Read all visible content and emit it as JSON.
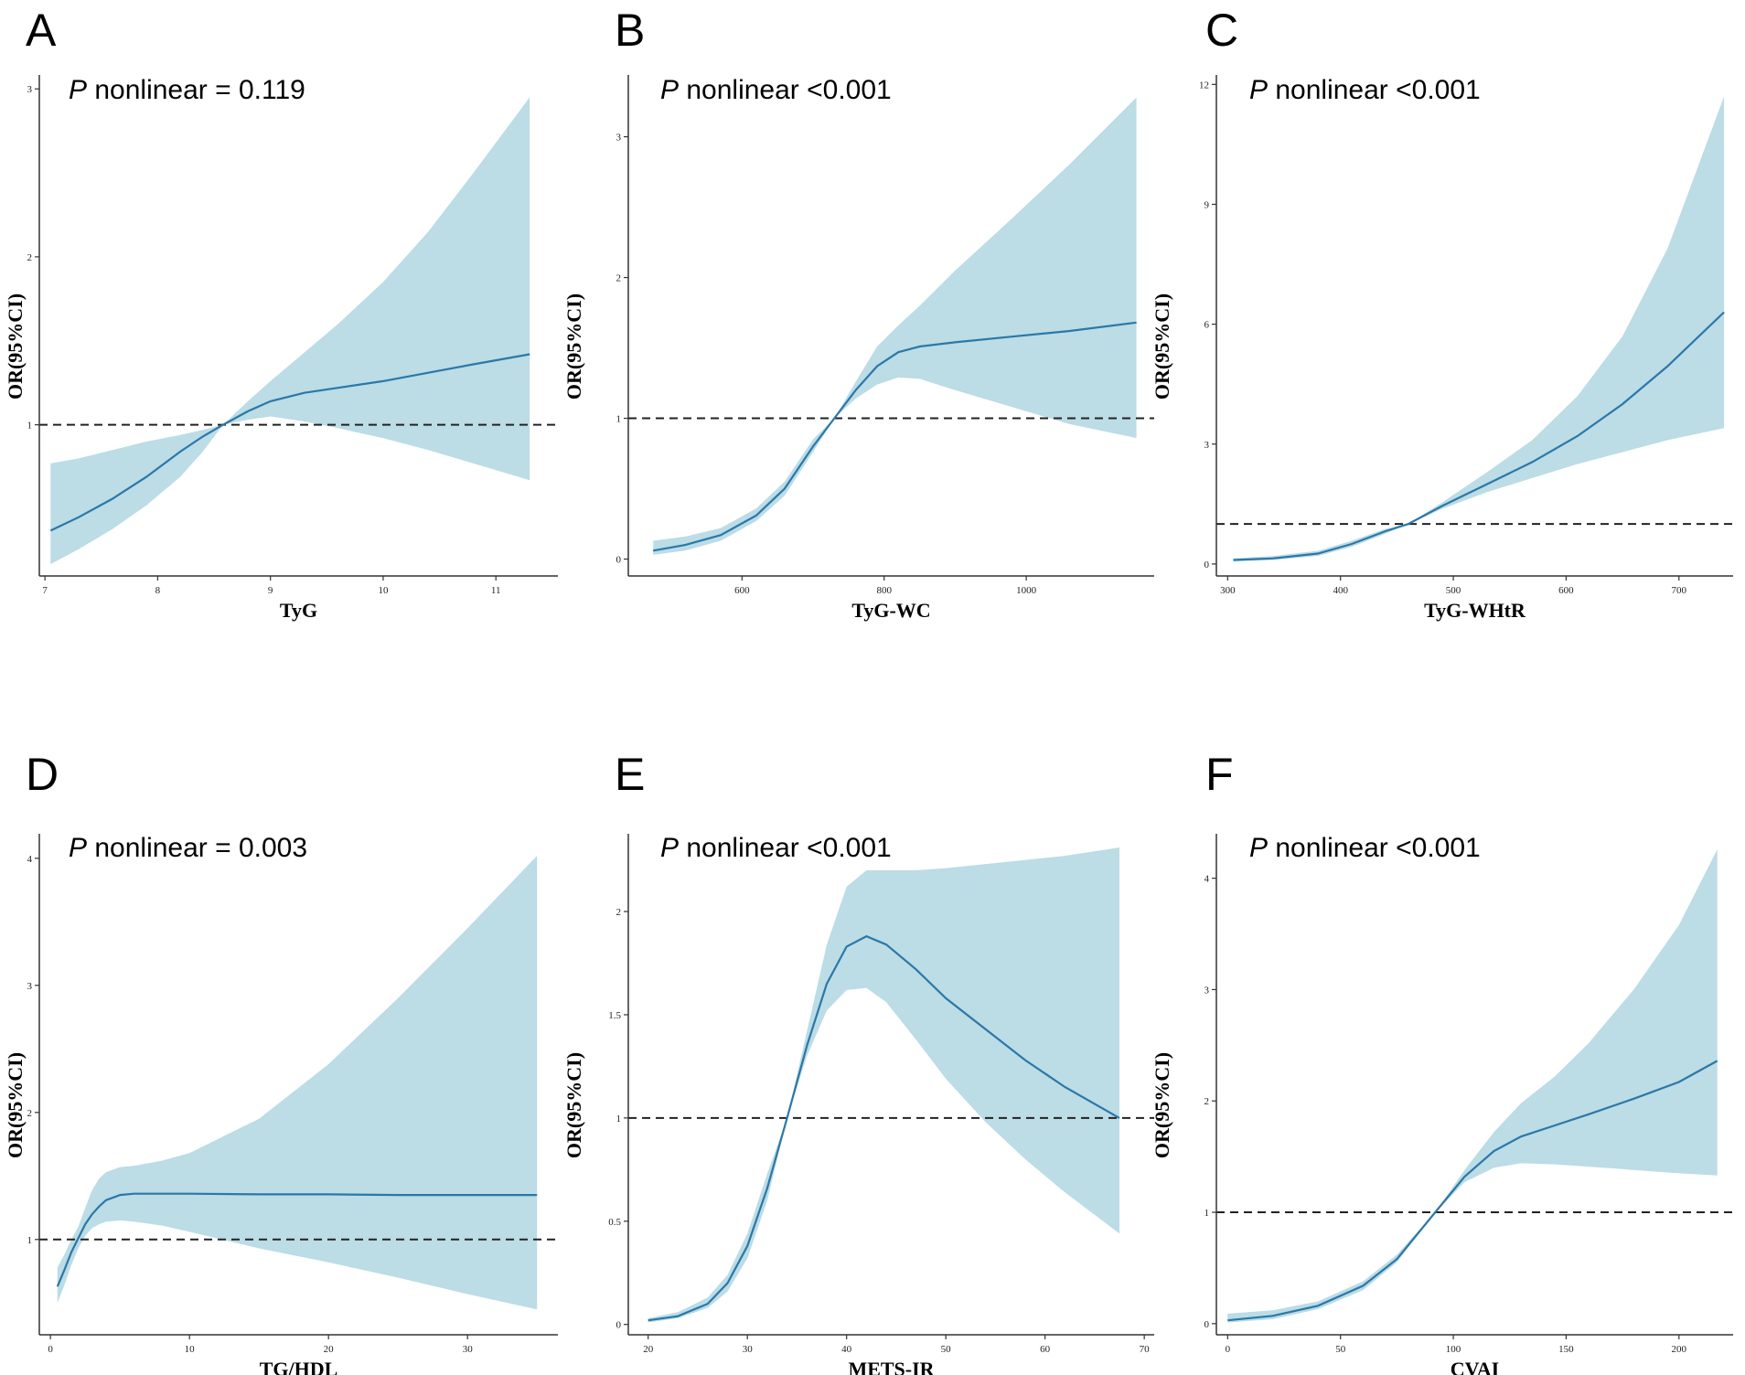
{
  "colors": {
    "band": "#bcdce6",
    "line": "#2a78a8",
    "reference": "#222222"
  },
  "chart_data": [
    {
      "type": "line",
      "panel": "A",
      "p_italic": "P",
      "p_text": " nonlinear = 0.119",
      "xlabel": "TyG",
      "ylabel": "OR(95%CI)",
      "xlim": [
        6.95,
        11.55
      ],
      "ylim": [
        0.1,
        3.05
      ],
      "xticks": [
        7,
        8,
        9,
        10,
        11
      ],
      "yticks": [
        1,
        2,
        3
      ],
      "reference": 1,
      "x": [
        7.05,
        7.3,
        7.6,
        7.9,
        8.2,
        8.4,
        8.58,
        8.8,
        9.0,
        9.3,
        9.6,
        10.0,
        10.4,
        10.8,
        11.3
      ],
      "y": [
        0.37,
        0.45,
        0.56,
        0.69,
        0.84,
        0.93,
        1.0,
        1.08,
        1.14,
        1.19,
        1.22,
        1.26,
        1.31,
        1.36,
        1.42
      ],
      "lower": [
        0.17,
        0.26,
        0.38,
        0.52,
        0.69,
        0.84,
        1.0,
        1.03,
        1.05,
        1.02,
        0.98,
        0.92,
        0.85,
        0.77,
        0.67
      ],
      "upper": [
        0.77,
        0.8,
        0.85,
        0.9,
        0.94,
        0.97,
        1.0,
        1.14,
        1.26,
        1.43,
        1.6,
        1.85,
        2.15,
        2.5,
        2.95
      ]
    },
    {
      "type": "line",
      "panel": "B",
      "p_italic": "P",
      "p_text": " nonlinear <0.001",
      "xlabel": "TyG-WC",
      "ylabel": "OR(95%CI)",
      "xlim": [
        440,
        1180
      ],
      "ylim": [
        -0.12,
        3.4
      ],
      "xticks": [
        600,
        800,
        1000
      ],
      "yticks": [
        0,
        1,
        2,
        3
      ],
      "reference": 1,
      "x": [
        475,
        520,
        570,
        620,
        660,
        700,
        730,
        760,
        790,
        820,
        850,
        900,
        980,
        1060,
        1155
      ],
      "y": [
        0.06,
        0.1,
        0.17,
        0.31,
        0.5,
        0.8,
        1.0,
        1.2,
        1.37,
        1.47,
        1.51,
        1.54,
        1.58,
        1.62,
        1.68
      ],
      "lower": [
        0.03,
        0.06,
        0.13,
        0.27,
        0.45,
        0.76,
        1.0,
        1.14,
        1.24,
        1.29,
        1.28,
        1.2,
        1.08,
        0.96,
        0.86
      ],
      "upper": [
        0.13,
        0.16,
        0.22,
        0.36,
        0.55,
        0.85,
        1.0,
        1.26,
        1.51,
        1.66,
        1.8,
        2.05,
        2.42,
        2.8,
        3.28
      ]
    },
    {
      "type": "line",
      "panel": "C",
      "p_italic": "P",
      "p_text": " nonlinear <0.001",
      "xlabel": "TyG-WHtR",
      "ylabel": "OR(95%CI)",
      "xlim": [
        290,
        748
      ],
      "ylim": [
        -0.3,
        12.1
      ],
      "xticks": [
        300,
        400,
        500,
        600,
        700
      ],
      "yticks": [
        0,
        3,
        6,
        9,
        12
      ],
      "reference": 1,
      "x": [
        305,
        340,
        380,
        410,
        440,
        460,
        490,
        530,
        570,
        610,
        650,
        690,
        740
      ],
      "y": [
        0.1,
        0.14,
        0.26,
        0.5,
        0.82,
        1.0,
        1.45,
        2.0,
        2.55,
        3.2,
        4.0,
        4.95,
        6.3
      ],
      "lower": [
        0.06,
        0.1,
        0.2,
        0.43,
        0.76,
        1.0,
        1.38,
        1.8,
        2.15,
        2.5,
        2.8,
        3.1,
        3.4
      ],
      "upper": [
        0.14,
        0.2,
        0.33,
        0.58,
        0.88,
        1.0,
        1.54,
        2.3,
        3.1,
        4.2,
        5.7,
        7.9,
        11.7
      ]
    },
    {
      "type": "line",
      "panel": "D",
      "p_italic": "P",
      "p_text": " nonlinear = 0.003",
      "xlabel": "TG/HDL",
      "ylabel": "OR(95%CI)",
      "xlim": [
        -0.8,
        36.5
      ],
      "ylim": [
        0.25,
        4.15
      ],
      "xticks": [
        0,
        10,
        20,
        30
      ],
      "yticks": [
        1,
        2,
        3,
        4
      ],
      "reference": 1,
      "x": [
        0.5,
        1.0,
        1.5,
        2.0,
        2.5,
        3.0,
        3.5,
        4.0,
        5.0,
        6.0,
        8.0,
        10,
        15,
        20,
        25,
        30,
        35
      ],
      "y": [
        0.63,
        0.76,
        0.9,
        1.01,
        1.12,
        1.2,
        1.26,
        1.31,
        1.35,
        1.36,
        1.36,
        1.36,
        1.355,
        1.355,
        1.35,
        1.35,
        1.35
      ],
      "lower": [
        0.5,
        0.64,
        0.8,
        0.93,
        1.03,
        1.09,
        1.12,
        1.14,
        1.15,
        1.14,
        1.11,
        1.06,
        0.93,
        0.82,
        0.7,
        0.57,
        0.45
      ],
      "upper": [
        0.78,
        0.88,
        1.0,
        1.1,
        1.25,
        1.39,
        1.48,
        1.53,
        1.57,
        1.58,
        1.62,
        1.68,
        1.95,
        2.38,
        2.9,
        3.45,
        4.02
      ]
    },
    {
      "type": "line",
      "panel": "E",
      "p_italic": "P",
      "p_text": " nonlinear <0.001",
      "xlabel": "METS-IR",
      "ylabel": "OR(95%CI)",
      "xlim": [
        18,
        71
      ],
      "ylim": [
        -0.05,
        2.35
      ],
      "xticks": [
        20,
        30,
        40,
        50,
        60,
        70
      ],
      "yticks": [
        0.0,
        0.5,
        1.0,
        1.5,
        2.0
      ],
      "reference": 1,
      "x": [
        20,
        23,
        26,
        28,
        30,
        32,
        34,
        36,
        38,
        40,
        42,
        44,
        47,
        50,
        54,
        58,
        62,
        67.5
      ],
      "y": [
        0.02,
        0.04,
        0.1,
        0.2,
        0.38,
        0.66,
        1.0,
        1.35,
        1.65,
        1.83,
        1.88,
        1.84,
        1.72,
        1.58,
        1.43,
        1.28,
        1.15,
        1.0
      ],
      "lower": [
        0.01,
        0.03,
        0.08,
        0.16,
        0.32,
        0.6,
        1.0,
        1.3,
        1.52,
        1.62,
        1.63,
        1.56,
        1.38,
        1.19,
        0.98,
        0.8,
        0.64,
        0.44
      ],
      "upper": [
        0.03,
        0.06,
        0.13,
        0.24,
        0.44,
        0.73,
        1.0,
        1.42,
        1.84,
        2.12,
        2.2,
        2.2,
        2.2,
        2.21,
        2.23,
        2.25,
        2.27,
        2.31
      ]
    },
    {
      "type": "line",
      "panel": "F",
      "p_italic": "P",
      "p_text": " nonlinear <0.001",
      "xlabel": "CVAI",
      "ylabel": "OR(95%CI)",
      "xlim": [
        -5,
        224
      ],
      "ylim": [
        -0.1,
        4.35
      ],
      "xticks": [
        0,
        50,
        100,
        150,
        200
      ],
      "yticks": [
        0,
        1,
        2,
        3,
        4
      ],
      "reference": 1,
      "x": [
        0,
        20,
        40,
        60,
        75,
        92,
        105,
        118,
        130,
        145,
        160,
        180,
        200,
        217
      ],
      "y": [
        0.03,
        0.07,
        0.16,
        0.34,
        0.58,
        1.0,
        1.32,
        1.55,
        1.68,
        1.78,
        1.88,
        2.02,
        2.17,
        2.36
      ],
      "lower": [
        0.01,
        0.04,
        0.13,
        0.3,
        0.55,
        1.0,
        1.27,
        1.4,
        1.44,
        1.43,
        1.41,
        1.38,
        1.35,
        1.33
      ],
      "upper": [
        0.09,
        0.12,
        0.2,
        0.38,
        0.62,
        1.0,
        1.38,
        1.72,
        1.98,
        2.22,
        2.52,
        3.0,
        3.58,
        4.26
      ]
    }
  ]
}
